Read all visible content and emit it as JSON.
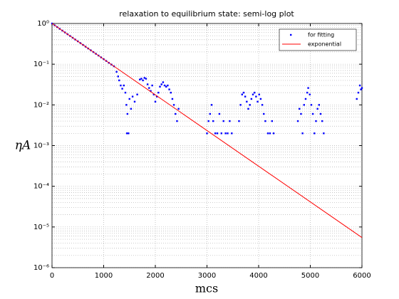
{
  "chart_data": {
    "type": "scatter",
    "title": "relaxation to equilibrium state: semi-log plot",
    "xlabel": "mcs",
    "ylabel": "ηA",
    "xlim": [
      0,
      6000
    ],
    "xticks": [
      0,
      1000,
      2000,
      3000,
      4000,
      5000,
      6000
    ],
    "ylim": [
      1e-06,
      1
    ],
    "log_y": true,
    "grid": true,
    "minor_grid": true,
    "legend": "upper right",
    "yticks": [
      {
        "value": 1e-06,
        "label": "10⁻⁶"
      },
      {
        "value": 1e-05,
        "label": "10⁻⁵"
      },
      {
        "value": 0.0001,
        "label": "10⁻⁴"
      },
      {
        "value": 0.001,
        "label": "10⁻³"
      },
      {
        "value": 0.01,
        "label": "10⁻²"
      },
      {
        "value": 0.1,
        "label": "10⁻¹"
      },
      {
        "value": 1,
        "label": "10⁰"
      }
    ],
    "series": [
      {
        "name": "for fitting",
        "color": "#0000ff",
        "type": "scatter",
        "x": [
          0,
          50,
          100,
          150,
          200,
          250,
          300,
          350,
          400,
          450,
          500,
          550,
          600,
          650,
          700,
          750,
          800,
          850,
          900,
          950,
          1000,
          1050,
          1100,
          1150,
          1200,
          1250,
          1280,
          1300,
          1330,
          1360,
          1390,
          1420,
          1440,
          1450,
          1460,
          1480,
          1500,
          1530,
          1560,
          1600,
          1650,
          1700,
          1730,
          1760,
          1790,
          1820,
          1850,
          1880,
          1910,
          1940,
          1970,
          2000,
          2030,
          2060,
          2090,
          2120,
          2150,
          2180,
          2210,
          2240,
          2270,
          2300,
          2330,
          2360,
          2390,
          2420,
          2450,
          3000,
          3030,
          3060,
          3090,
          3120,
          3160,
          3200,
          3240,
          3280,
          3320,
          3360,
          3400,
          3440,
          3480,
          3620,
          3650,
          3680,
          3710,
          3740,
          3770,
          3800,
          3830,
          3860,
          3890,
          3920,
          3950,
          3980,
          4010,
          4040,
          4070,
          4100,
          4130,
          4180,
          4220,
          4260,
          4290,
          4760,
          4790,
          4820,
          4850,
          4880,
          4910,
          4940,
          4960,
          4990,
          5020,
          5050,
          5080,
          5110,
          5140,
          5170,
          5200,
          5230,
          5260,
          5900,
          5930,
          5960,
          5980,
          6000
        ],
        "values": [
          1.0,
          0.904,
          0.817,
          0.739,
          0.668,
          0.604,
          0.546,
          0.494,
          0.446,
          0.403,
          0.365,
          0.33,
          0.298,
          0.269,
          0.243,
          0.22,
          0.199,
          0.18,
          0.163,
          0.147,
          0.133,
          0.12,
          0.108,
          0.098,
          0.089,
          0.065,
          0.05,
          0.04,
          0.03,
          0.025,
          0.03,
          0.02,
          0.01,
          0.002,
          0.006,
          0.002,
          0.014,
          0.008,
          0.016,
          0.012,
          0.018,
          0.042,
          0.044,
          0.04,
          0.046,
          0.044,
          0.032,
          0.026,
          0.022,
          0.03,
          0.018,
          0.012,
          0.016,
          0.02,
          0.028,
          0.032,
          0.036,
          0.03,
          0.028,
          0.03,
          0.024,
          0.02,
          0.014,
          0.01,
          0.006,
          0.004,
          0.008,
          0.002,
          0.004,
          0.006,
          0.01,
          0.004,
          0.002,
          0.002,
          0.006,
          0.002,
          0.004,
          0.002,
          0.002,
          0.004,
          0.002,
          0.004,
          0.01,
          0.018,
          0.02,
          0.016,
          0.012,
          0.008,
          0.01,
          0.014,
          0.018,
          0.02,
          0.016,
          0.012,
          0.018,
          0.014,
          0.01,
          0.006,
          0.004,
          0.002,
          0.002,
          0.004,
          0.002,
          0.004,
          0.008,
          0.006,
          0.002,
          0.01,
          0.014,
          0.02,
          0.026,
          0.018,
          0.01,
          0.006,
          0.002,
          0.004,
          0.008,
          0.01,
          0.006,
          0.004,
          0.002,
          0.014,
          0.02,
          0.03,
          0.024,
          0.026
        ]
      },
      {
        "name": "exponential",
        "color": "#ff0000",
        "type": "line",
        "x": [
          0,
          6000
        ],
        "values": [
          1,
          5.5e-06
        ]
      }
    ]
  }
}
